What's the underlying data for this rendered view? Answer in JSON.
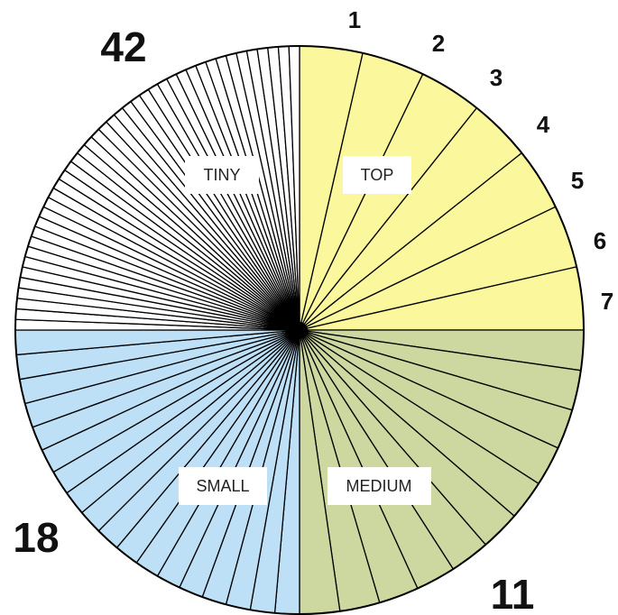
{
  "chart_data": {
    "type": "pie",
    "title": "",
    "quadrants": [
      {
        "name": "TOP",
        "count": 7,
        "color": "#fbf79c"
      },
      {
        "name": "MEDIUM",
        "count": 11,
        "color": "#ccd89f"
      },
      {
        "name": "SMALL",
        "count": 18,
        "color": "#bde0f7"
      },
      {
        "name": "TINY",
        "count": 42,
        "color": "#ffffff"
      }
    ],
    "top_slice_labels": [
      "1",
      "2",
      "3",
      "4",
      "5",
      "6",
      "7"
    ],
    "count_labels": {
      "tiny": "42",
      "medium": "11",
      "small": "18"
    },
    "slice_stroke_color": "#000000"
  }
}
